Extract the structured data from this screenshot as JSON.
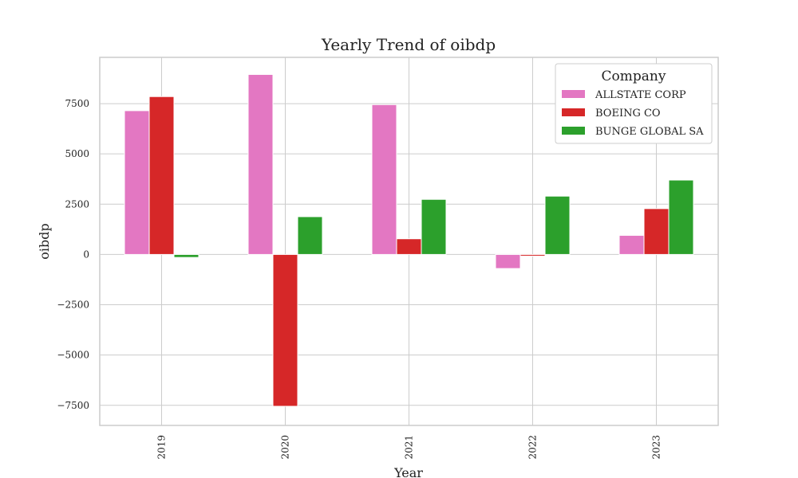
{
  "chart_data": {
    "type": "bar",
    "title": "Yearly Trend of oibdp",
    "xlabel": "Year",
    "ylabel": "oibdp",
    "categories": [
      "2019",
      "2020",
      "2021",
      "2022",
      "2023"
    ],
    "ylim": [
      -8500,
      9800
    ],
    "yticks": [
      -7500,
      -5000,
      -2500,
      0,
      2500,
      5000,
      7500
    ],
    "ytick_labels": [
      "−7500",
      "−5000",
      "−2500",
      "0",
      "2500",
      "5000",
      "7500"
    ],
    "grid": true,
    "legend": {
      "title": "Company",
      "placement": "top-right"
    },
    "series": [
      {
        "name": "ALLSTATE CORP",
        "color": "#e377c2",
        "values": [
          7150,
          8950,
          7450,
          -700,
          950
        ]
      },
      {
        "name": "BOEING CO",
        "color": "#d62728",
        "values": [
          7850,
          -7550,
          780,
          -80,
          2280
        ]
      },
      {
        "name": "BUNGE GLOBAL SA",
        "color": "#2ca02c",
        "values": [
          -150,
          1880,
          2740,
          2900,
          3700
        ]
      }
    ]
  }
}
